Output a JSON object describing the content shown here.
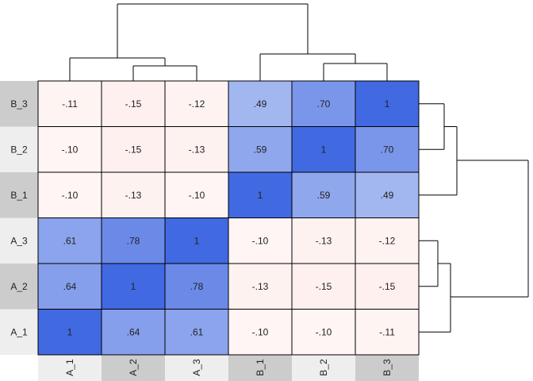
{
  "chart_data": {
    "type": "heatmap",
    "title": "",
    "xlabel": "",
    "ylabel": "",
    "columns": [
      "A_1",
      "A_2",
      "A_3",
      "B_1",
      "B_2",
      "B_3"
    ],
    "rows_top_to_bottom": [
      "B_3",
      "B_2",
      "B_1",
      "A_3",
      "A_2",
      "A_1"
    ],
    "values": [
      [
        -0.11,
        -0.15,
        -0.12,
        0.49,
        0.7,
        1
      ],
      [
        -0.1,
        -0.15,
        -0.13,
        0.59,
        1,
        0.7
      ],
      [
        -0.1,
        -0.13,
        -0.1,
        1,
        0.59,
        0.49
      ],
      [
        0.61,
        0.78,
        1,
        -0.1,
        -0.13,
        -0.12
      ],
      [
        0.64,
        1,
        0.78,
        -0.13,
        -0.15,
        -0.15
      ],
      [
        1,
        0.64,
        0.61,
        -0.1,
        -0.1,
        -0.11
      ]
    ],
    "labels": [
      [
        "-.11",
        "-.15",
        "-.12",
        ".49",
        ".70",
        "1"
      ],
      [
        "-.10",
        "-.15",
        "-.13",
        ".59",
        "1",
        ".70"
      ],
      [
        "-.10",
        "-.13",
        "-.10",
        "1",
        ".59",
        ".49"
      ],
      [
        ".61",
        ".78",
        "1",
        "-.10",
        "-.13",
        "-.12"
      ],
      [
        ".64",
        "1",
        ".78",
        "-.13",
        "-.15",
        "-.15"
      ],
      [
        "1",
        ".64",
        ".61",
        "-.10",
        "-.10",
        "-.11"
      ]
    ],
    "color_scale": {
      "negative_color": "#fa9a8c",
      "positive_color": "#4169e1",
      "neutral_color": "#ffffff",
      "negative_reference": -1,
      "positive_reference": 1
    },
    "label_backgrounds": [
      "#cccccc",
      "#eeeeee"
    ],
    "column_dendrogram": "((A_1,(A_2,A_3)),(B_1,(B_2,B_3)))",
    "row_dendrogram": "((B_3,B_2),B_1),((A_3,A_2),A_1)",
    "grid": true,
    "legend": "none"
  }
}
